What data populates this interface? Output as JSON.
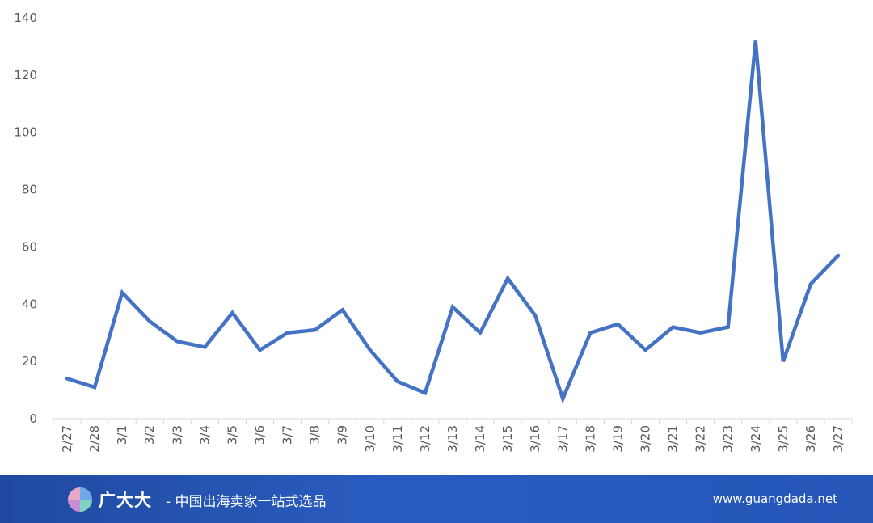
{
  "chart_data": {
    "type": "line",
    "categories": [
      "2/27",
      "2/28",
      "3/1",
      "3/2",
      "3/3",
      "3/4",
      "3/5",
      "3/6",
      "3/7",
      "3/8",
      "3/9",
      "3/10",
      "3/11",
      "3/12",
      "3/13",
      "3/14",
      "3/15",
      "3/16",
      "3/17",
      "3/18",
      "3/19",
      "3/20",
      "3/21",
      "3/22",
      "3/23",
      "3/24",
      "3/25",
      "3/26",
      "3/27"
    ],
    "series": [
      {
        "values": [
          14,
          11,
          44,
          34,
          27,
          25,
          37,
          24,
          30,
          31,
          38,
          24,
          13,
          9,
          39,
          30,
          49,
          36,
          7,
          30,
          33,
          24,
          32,
          30,
          32,
          132,
          20,
          47,
          57
        ]
      }
    ],
    "ylim": [
      0,
      140
    ],
    "yticks": [
      0,
      20,
      40,
      60,
      80,
      100,
      120,
      140
    ],
    "grid": false,
    "line_color": "#4472c4"
  },
  "footer": {
    "brand": "广大大",
    "tagline": "- 中国出海卖家一站式选品",
    "website": "www.guangdada.net"
  }
}
